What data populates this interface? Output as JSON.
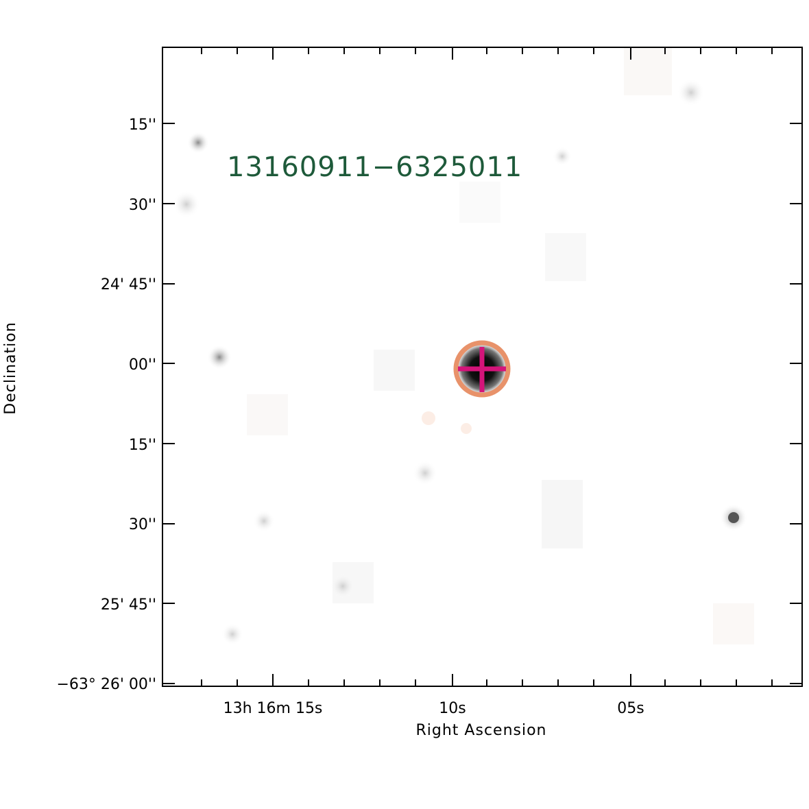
{
  "source_id": "13160911−6325011",
  "axes": {
    "xlabel": "Right Ascension",
    "ylabel": "Declination"
  },
  "dec_ticks": [
    {
      "text": "15''"
    },
    {
      "text": "30''"
    },
    {
      "text": "24' 45''"
    },
    {
      "text": "00''"
    },
    {
      "text": "15''"
    },
    {
      "text": "30''"
    },
    {
      "text": "25' 45''"
    },
    {
      "text": "−63° 26' 00''"
    }
  ],
  "ra_ticks": [
    {
      "text": "13h 16m 15s"
    },
    {
      "text": "10s"
    },
    {
      "text": "05s"
    }
  ],
  "colors": {
    "label": "#1e5a3a",
    "circle": "#e8926a",
    "cross": "#d4147a"
  }
}
